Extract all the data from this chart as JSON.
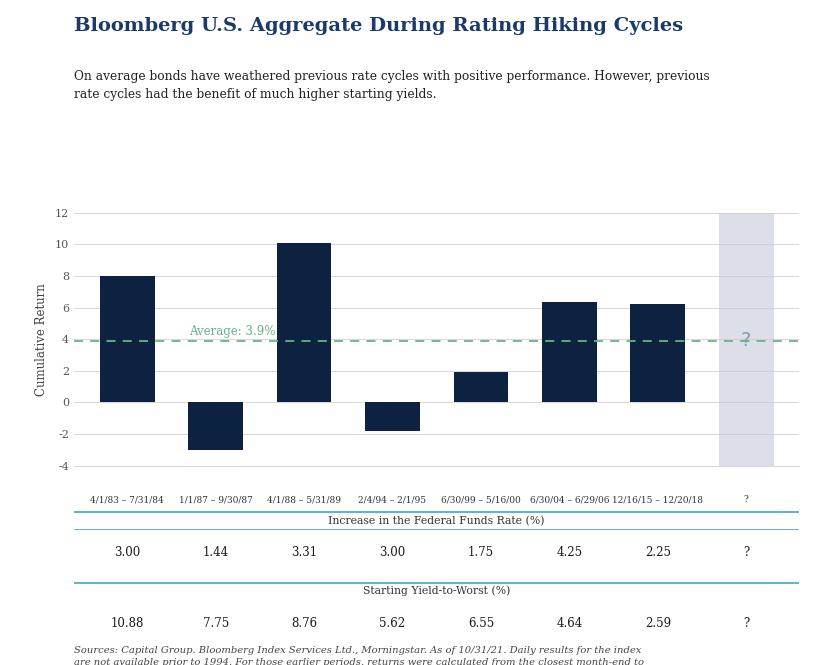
{
  "title": "Bloomberg U.S. Aggregate During Rating Hiking Cycles",
  "subtitle": "On average bonds have weathered previous rate cycles with positive performance. However, previous\nrate cycles had the benefit of much higher starting yields.",
  "categories": [
    "4/1/83 – 7/31/84",
    "1/1/87 – 9/30/87",
    "4/1/88 – 5/31/89",
    "2/4/94 – 2/1/95",
    "6/30/99 – 5/16/00",
    "6/30/04 – 6/29/06",
    "12/16/15 – 12/20/18",
    "?"
  ],
  "values": [
    8.0,
    -3.0,
    10.1,
    -1.8,
    1.9,
    6.35,
    6.25,
    null
  ],
  "bar_color": "#0d2240",
  "gray_bar_color": "#c5cbd8",
  "gray_bar_alpha": 0.6,
  "average_value": 3.9,
  "average_label": "Average: 3.9%",
  "average_color": "#6ab187",
  "ylabel": "Cumulative Return",
  "ylim": [
    -4,
    12
  ],
  "yticks": [
    -4,
    -2,
    0,
    2,
    4,
    6,
    8,
    10,
    12
  ],
  "question_mark_color": "#8a9ab5",
  "fed_funds_label": "Increase in the Federal Funds Rate (%)",
  "fed_funds_values": [
    "3.00",
    "1.44",
    "3.31",
    "3.00",
    "1.75",
    "4.25",
    "2.25",
    "?"
  ],
  "yield_label": "Starting Yield-to-Worst (%)",
  "yield_values": [
    "10.88",
    "7.75",
    "8.76",
    "5.62",
    "6.55",
    "4.64",
    "2.59",
    "?"
  ],
  "footnote": "Sources: Capital Group. Bloomberg Index Services Ltd., Morningstar. As of 10/31/21. Daily results for the index\nare not available prior to 1994. For those earlier periods, returns were calculated from the closest month-end to\nthe day of the first hike through the closest month-end to the day of the final hike. Starting Yield to Worst\nsourced from FactSet and is taken from the start of the month in the period displayed.",
  "title_color": "#1a3a6b",
  "text_color": "#222222",
  "bg_color": "#ffffff",
  "grid_color": "#d0d0d0",
  "table_bg": "#e2e6eb",
  "teal_line_color": "#5ab4c8",
  "bar_width": 0.62
}
